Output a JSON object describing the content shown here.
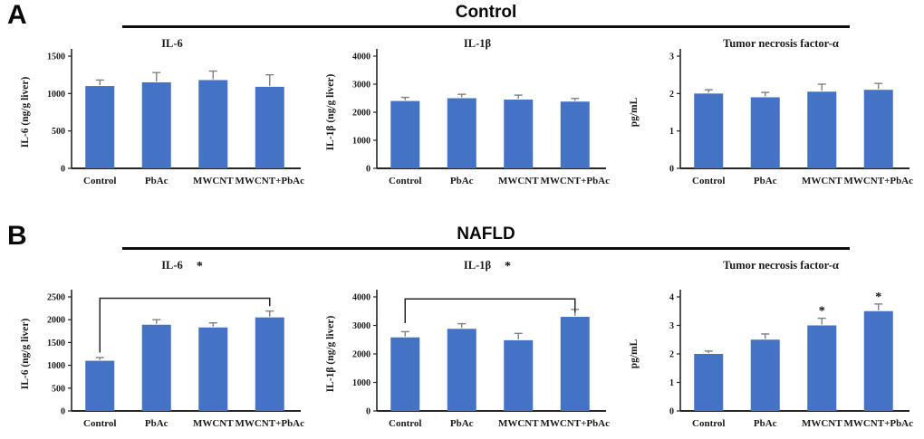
{
  "panels": {
    "a": {
      "label": "A",
      "header": "Control"
    },
    "b": {
      "label": "B",
      "header": "NAFLD"
    }
  },
  "style": {
    "bar_color": "#4472C4",
    "error_color": "#7f7f7f",
    "axis_color": "#262626",
    "text_color": "#1a1a1a"
  },
  "chart_data": [
    {
      "id": "control-il6",
      "panel": "A",
      "type": "bar",
      "title": "IL-6",
      "title_star": null,
      "ylabel": "IL-6 (ng/g liver)",
      "categories": [
        "Control",
        "PbAc",
        "MWCNT",
        "MWCNT+PbAc"
      ],
      "values": [
        1100,
        1150,
        1180,
        1090
      ],
      "errors": [
        80,
        130,
        120,
        160
      ],
      "ylim": [
        0,
        1500
      ],
      "yticks": [
        0,
        500,
        1000,
        1500
      ],
      "star_bars": [],
      "bracket": null
    },
    {
      "id": "control-il1b",
      "panel": "A",
      "type": "bar",
      "title": "IL-1β",
      "title_star": null,
      "ylabel": "IL-1β (ng/g liver)",
      "categories": [
        "Control",
        "PbAc",
        "MWCNT",
        "MWCNT+PbAc"
      ],
      "values": [
        2400,
        2500,
        2450,
        2380
      ],
      "errors": [
        130,
        140,
        160,
        110
      ],
      "ylim": [
        0,
        4000
      ],
      "yticks": [
        0,
        1000,
        2000,
        3000,
        4000
      ],
      "star_bars": [],
      "bracket": null
    },
    {
      "id": "control-tnf",
      "panel": "A",
      "type": "bar",
      "title": "Tumor necrosis factor-α",
      "title_star": null,
      "ylabel": "pg/mL",
      "categories": [
        "Control",
        "PbAc",
        "MWCNT",
        "MWCNT+PbAc"
      ],
      "values": [
        2.0,
        1.9,
        2.05,
        2.1
      ],
      "errors": [
        0.1,
        0.13,
        0.2,
        0.17
      ],
      "ylim": [
        0,
        3
      ],
      "yticks": [
        0,
        1,
        2,
        3
      ],
      "star_bars": [],
      "bracket": null
    },
    {
      "id": "nafld-il6",
      "panel": "B",
      "type": "bar",
      "title": "IL-6",
      "title_star": "*",
      "ylabel": "IL-6 (ng/g liver)",
      "categories": [
        "Control",
        "PbAc",
        "MWCNT",
        "MWCNT+PbAc"
      ],
      "values": [
        1100,
        1890,
        1830,
        2050
      ],
      "errors": [
        70,
        110,
        100,
        140
      ],
      "ylim": [
        0,
        2500
      ],
      "yticks": [
        0,
        500,
        1000,
        1500,
        2000,
        2500
      ],
      "star_bars": [],
      "bracket": {
        "from": 0,
        "to": 3,
        "level": 2470,
        "drop_from": 1280,
        "drop_to": 2300
      }
    },
    {
      "id": "nafld-il1b",
      "panel": "B",
      "type": "bar",
      "title": "IL-1β",
      "title_star": "*",
      "ylabel": "IL-1β (ng/g liver)",
      "categories": [
        "Control",
        "PbAc",
        "MWCNT",
        "MWCNT+PbAc"
      ],
      "values": [
        2580,
        2880,
        2480,
        3300
      ],
      "errors": [
        200,
        180,
        240,
        260
      ],
      "ylim": [
        0,
        4000
      ],
      "yticks": [
        0,
        1000,
        2000,
        3000,
        4000
      ],
      "star_bars": [],
      "bracket": {
        "from": 0,
        "to": 3,
        "level": 3930,
        "drop_from": 3080,
        "drop_to": 3450
      }
    },
    {
      "id": "nafld-tnf",
      "panel": "B",
      "type": "bar",
      "title": "Tumor necrosis factor-α",
      "title_star": null,
      "ylabel": "pg/mL",
      "categories": [
        "Control",
        "PbAc",
        "MWCNT",
        "MWCNT+PbAc"
      ],
      "values": [
        2.0,
        2.5,
        3.0,
        3.5
      ],
      "errors": [
        0.1,
        0.2,
        0.25,
        0.25
      ],
      "ylim": [
        0,
        4
      ],
      "yticks": [
        0,
        1,
        2,
        3,
        4
      ],
      "star_bars": [
        2,
        3
      ],
      "bracket": null
    }
  ]
}
